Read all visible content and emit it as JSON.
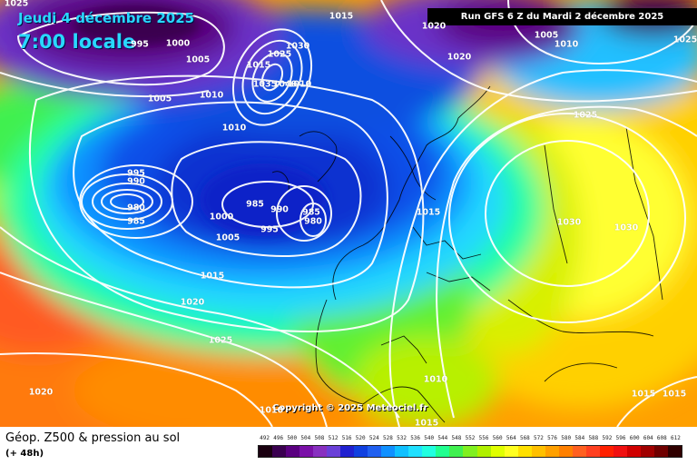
{
  "header": {
    "date": "Jeudi 4 décembre 2025",
    "time": "7:00 locale",
    "run": "Run GFS 6 Z du Mardi 2 décembre 2025"
  },
  "copyright": "Copyright © 2025 Meteociel.fr",
  "footer": {
    "title": "Géop. Z500 & pression au sol",
    "lead": "(+ 48h)"
  },
  "legend": {
    "ticks": [
      "492",
      "496",
      "500",
      "504",
      "508",
      "512",
      "516",
      "520",
      "524",
      "528",
      "532",
      "536",
      "540",
      "544",
      "548",
      "552",
      "556",
      "560",
      "564",
      "568",
      "572",
      "576",
      "580",
      "584",
      "588",
      "592",
      "596",
      "600",
      "604",
      "608",
      "612"
    ],
    "colors": [
      "#1a0010",
      "#3a0050",
      "#5a0080",
      "#7a10a8",
      "#8830c0",
      "#6a40d8",
      "#2020d0",
      "#1040e0",
      "#2060f0",
      "#1090ff",
      "#10c0ff",
      "#20e0ff",
      "#20ffe0",
      "#20ff90",
      "#40f050",
      "#80f020",
      "#b0f000",
      "#e0ff00",
      "#ffff20",
      "#ffe000",
      "#ffc000",
      "#ffa000",
      "#ff8000",
      "#ff6020",
      "#ff4020",
      "#ff2000",
      "#f01010",
      "#d00000",
      "#a00000",
      "#700000",
      "#300000"
    ]
  },
  "isobar_labels": [
    "1025",
    "995",
    "1000",
    "1005",
    "1015",
    "1030",
    "1025",
    "1020",
    "1005",
    "1010",
    "1025",
    "1005",
    "1010",
    "1015",
    "1035",
    "1040",
    "1010",
    "1020",
    "1025",
    "1010",
    "995",
    "990",
    "980",
    "985",
    "985",
    "990",
    "985",
    "980",
    "1000",
    "1005",
    "995",
    "1015",
    "1030",
    "1030",
    "1015",
    "1020",
    "1025",
    "1020",
    "1010",
    "1015",
    "1015",
    "1015",
    "1010"
  ]
}
